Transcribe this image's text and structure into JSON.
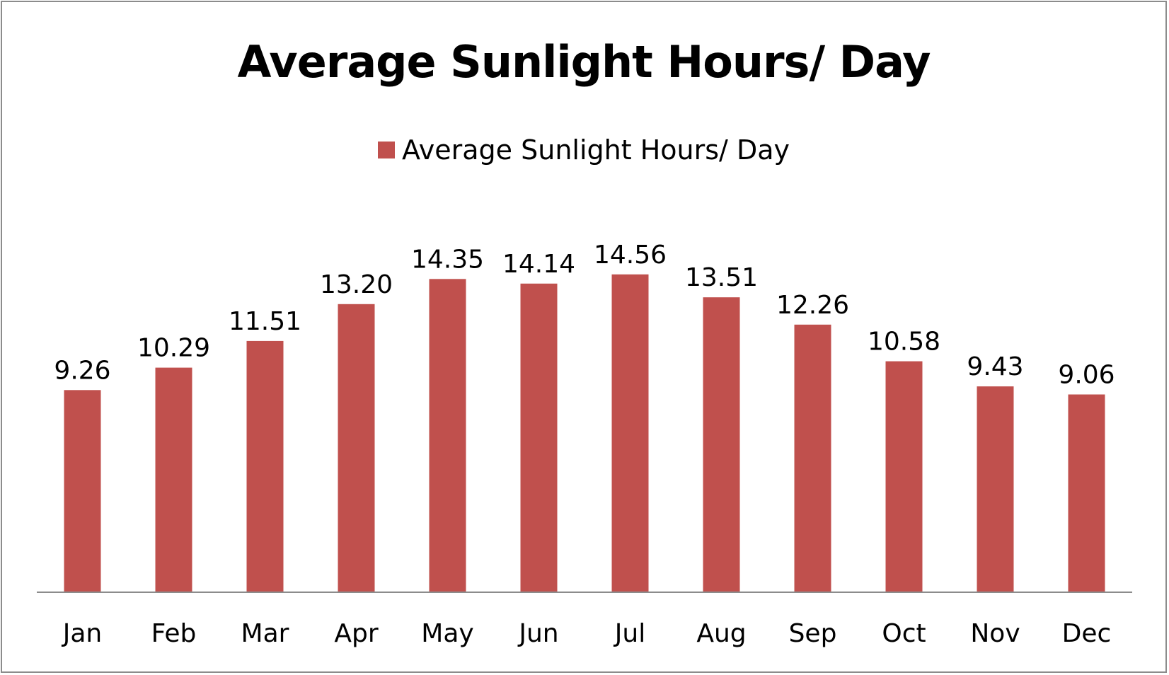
{
  "chart_data": {
    "type": "bar",
    "title": "Average Sunlight Hours/ Day",
    "categories": [
      "Jan",
      "Feb",
      "Mar",
      "Apr",
      "May",
      "Jun",
      "Jul",
      "Aug",
      "Sep",
      "Oct",
      "Nov",
      "Dec"
    ],
    "series": [
      {
        "name": "Average Sunlight Hours/ Day",
        "values": [
          9.26,
          10.29,
          11.51,
          13.2,
          14.35,
          14.14,
          14.56,
          13.51,
          12.26,
          10.58,
          9.43,
          9.06
        ],
        "labels": [
          "9.26",
          "10.29",
          "11.51",
          "13.20",
          "14.35",
          "14.14",
          "14.56",
          "13.51",
          "12.26",
          "10.58",
          "9.43",
          "9.06"
        ],
        "color": "#c0504d"
      }
    ],
    "xlabel": "",
    "ylabel": "",
    "ylim": [
      0,
      20
    ],
    "grid": false,
    "legend_position": "top",
    "y_axis_visible": false
  }
}
